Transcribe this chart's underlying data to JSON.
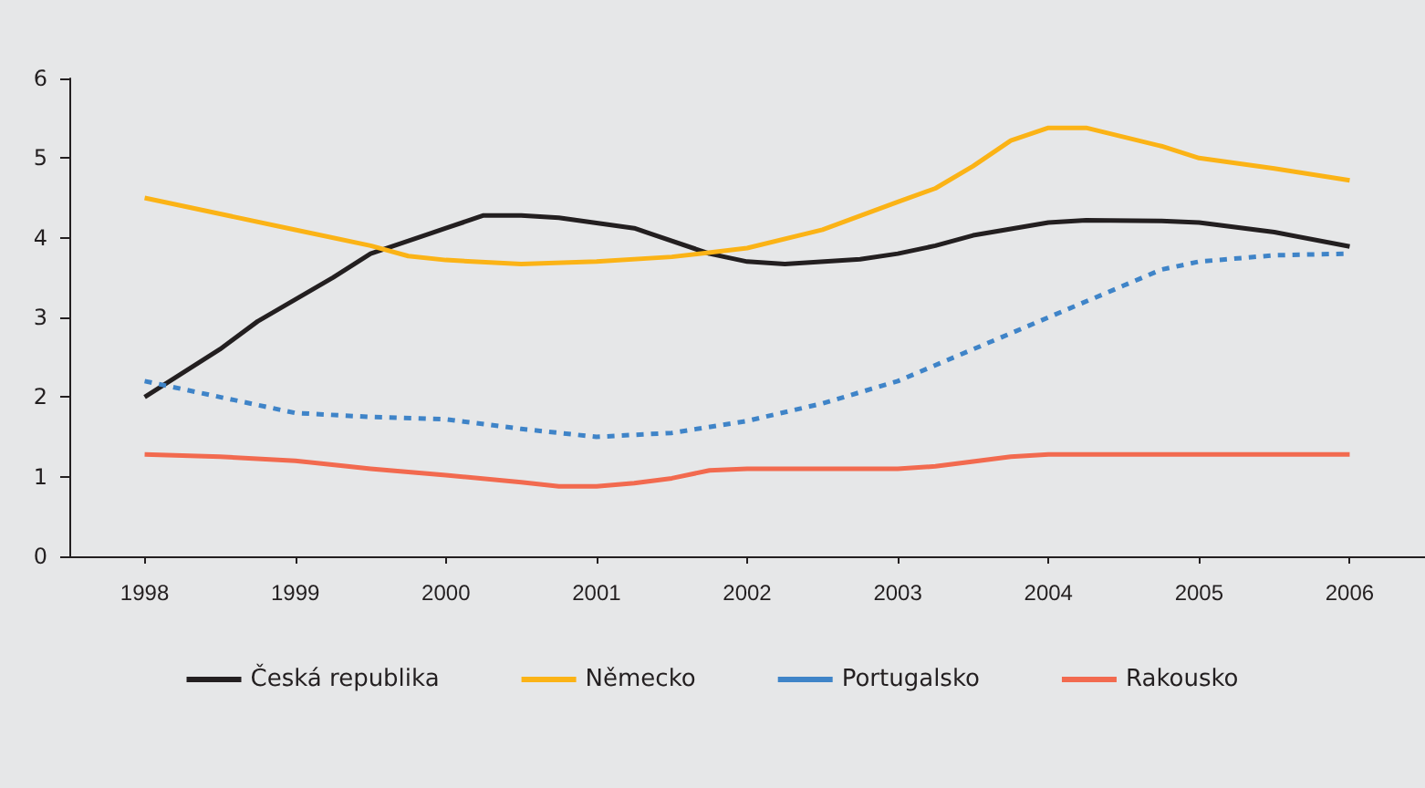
{
  "chart_data": {
    "type": "line",
    "xlim": [
      1997.5,
      2006.5
    ],
    "xticks": [
      1998,
      1999,
      2000,
      2001,
      2002,
      2003,
      2004,
      2005,
      2006
    ],
    "ylim": [
      0,
      6
    ],
    "yticks": [
      0,
      1,
      2,
      3,
      4,
      5,
      6
    ],
    "grid": false,
    "legend": "bottom",
    "marker": "none",
    "line_style": "solid",
    "series": [
      {
        "name": "Česká republika",
        "color": "#231f20",
        "x": [
          1998,
          1998.5,
          1998.75,
          1999.25,
          1999.5,
          2000,
          2000.25,
          2000.5,
          2000.75,
          2001.25,
          2001.75,
          2002,
          2002.25,
          2002.75,
          2003,
          2003.25,
          2003.5,
          2004,
          2004.25,
          2004.75,
          2005,
          2005.5,
          2006
        ],
        "values": [
          2.0,
          2.6,
          2.95,
          3.5,
          3.8,
          4.12,
          4.28,
          4.28,
          4.25,
          4.12,
          3.8,
          3.7,
          3.67,
          3.73,
          3.8,
          3.9,
          4.03,
          4.19,
          4.22,
          4.21,
          4.19,
          4.07,
          3.89
        ]
      },
      {
        "name": "Německo",
        "color": "#fbb316",
        "x": [
          1998,
          1999,
          1999.5,
          1999.75,
          2000,
          2000.5,
          2001,
          2001.5,
          2002,
          2002.5,
          2003,
          2003.25,
          2003.5,
          2003.75,
          2004,
          2004.25,
          2004.75,
          2005,
          2005.5,
          2006
        ],
        "values": [
          4.5,
          4.1,
          3.9,
          3.77,
          3.72,
          3.67,
          3.7,
          3.76,
          3.87,
          4.1,
          4.45,
          4.62,
          4.9,
          5.22,
          5.38,
          5.38,
          5.15,
          5.0,
          4.87,
          4.72
        ]
      },
      {
        "name": "Portugalsko",
        "color": "#3f84c8",
        "line_style": "dashed",
        "x": [
          1998,
          1998.5,
          1999,
          1999.5,
          2000,
          2000.5,
          2001,
          2001.5,
          2002,
          2002.5,
          2003,
          2003.5,
          2004,
          2004.5,
          2004.75,
          2005,
          2005.5,
          2006
        ],
        "values": [
          2.2,
          2.0,
          1.8,
          1.75,
          1.72,
          1.6,
          1.5,
          1.55,
          1.7,
          1.92,
          2.2,
          2.6,
          3.0,
          3.4,
          3.6,
          3.7,
          3.78,
          3.8
        ]
      },
      {
        "name": "Rakousko",
        "color": "#f26a4f",
        "x": [
          1998,
          1998.5,
          1999,
          1999.5,
          2000,
          2000.5,
          2000.75,
          2001,
          2001.25,
          2001.5,
          2001.75,
          2002,
          2003,
          2003.25,
          2003.75,
          2004,
          2006
        ],
        "values": [
          1.28,
          1.25,
          1.2,
          1.1,
          1.02,
          0.93,
          0.88,
          0.88,
          0.92,
          0.98,
          1.08,
          1.1,
          1.1,
          1.13,
          1.25,
          1.28,
          1.28
        ]
      }
    ]
  }
}
